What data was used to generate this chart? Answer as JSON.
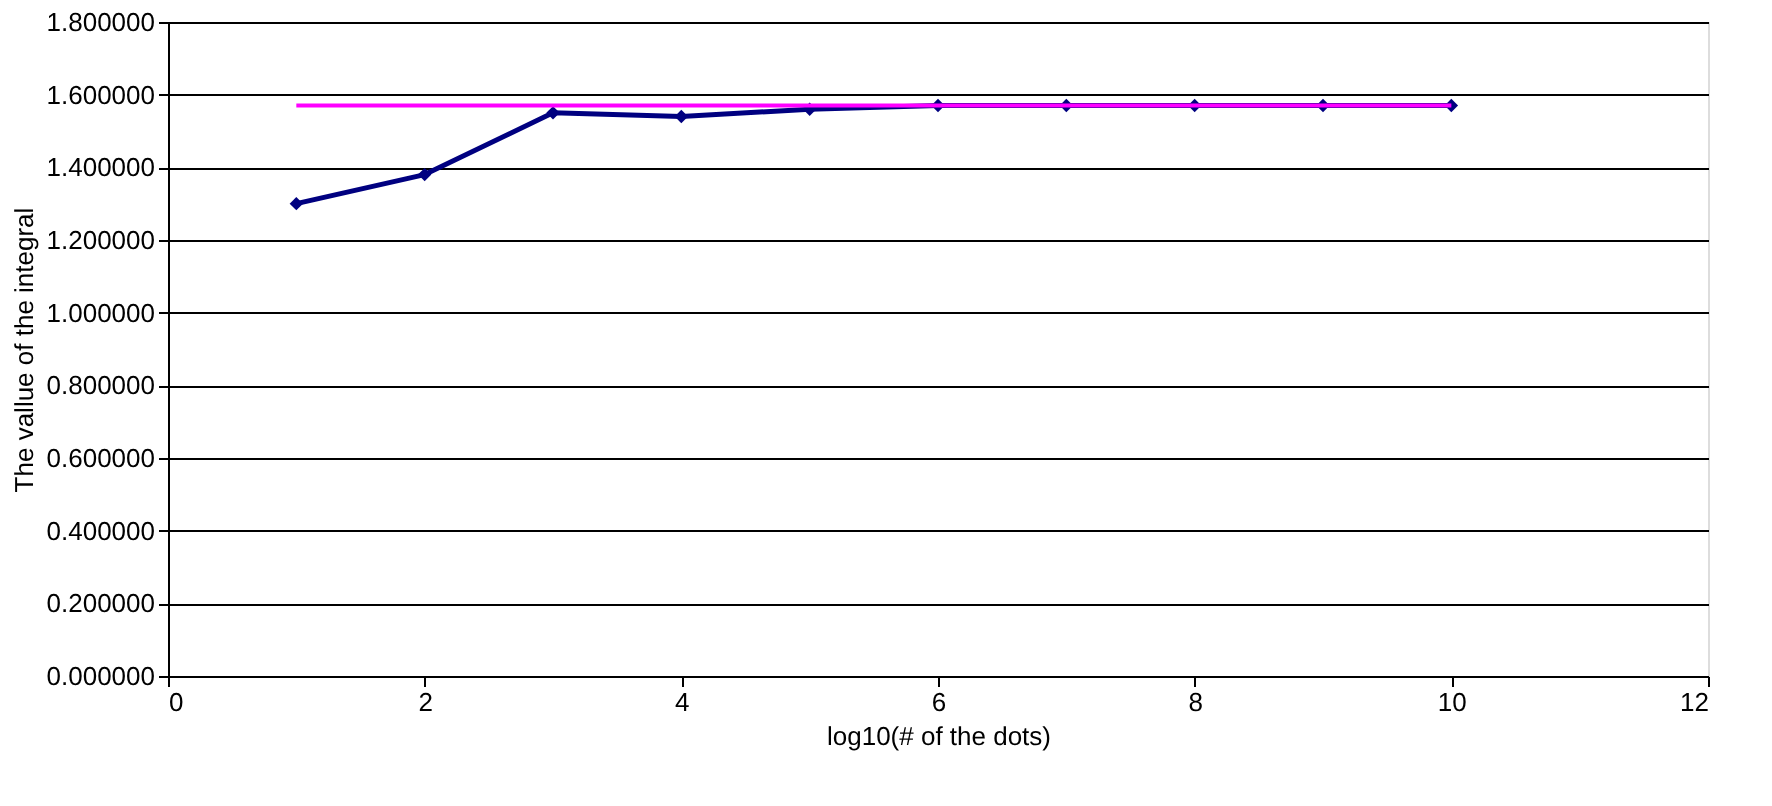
{
  "chart_data": {
    "type": "line",
    "xlabel": "log10(# of the dots)",
    "ylabel": "The vallue of the integral",
    "x": [
      1,
      2,
      3,
      4,
      5,
      6,
      7,
      8,
      9,
      10
    ],
    "series": [
      {
        "color": "#000080",
        "marker": "diamond",
        "values": [
          1.3,
          1.38,
          1.55,
          1.54,
          1.56,
          1.57,
          1.57,
          1.57,
          1.57,
          1.57
        ]
      },
      {
        "color": "#ff00ff",
        "marker": "none",
        "values": [
          1.57,
          1.57,
          1.57,
          1.57,
          1.57,
          1.57,
          1.57,
          1.57,
          1.57,
          1.57
        ]
      }
    ],
    "xlim": [
      0,
      12
    ],
    "xticks": [
      0,
      2,
      4,
      6,
      8,
      10,
      12
    ],
    "ylim": [
      0,
      1.8
    ],
    "yticks": [
      {
        "value": 0,
        "label": "0.000000"
      },
      {
        "value": 0.2,
        "label": "0.200000"
      },
      {
        "value": 0.4,
        "label": "0.400000"
      },
      {
        "value": 0.6,
        "label": "0.600000"
      },
      {
        "value": 0.8,
        "label": "0.800000"
      },
      {
        "value": 1.0,
        "label": "1.000000"
      },
      {
        "value": 1.2,
        "label": "1.200000"
      },
      {
        "value": 1.4,
        "label": "1.400000"
      },
      {
        "value": 1.6,
        "label": "1.600000"
      },
      {
        "value": 1.8,
        "label": "1.800000"
      }
    ],
    "grid": "y",
    "legend": false
  }
}
